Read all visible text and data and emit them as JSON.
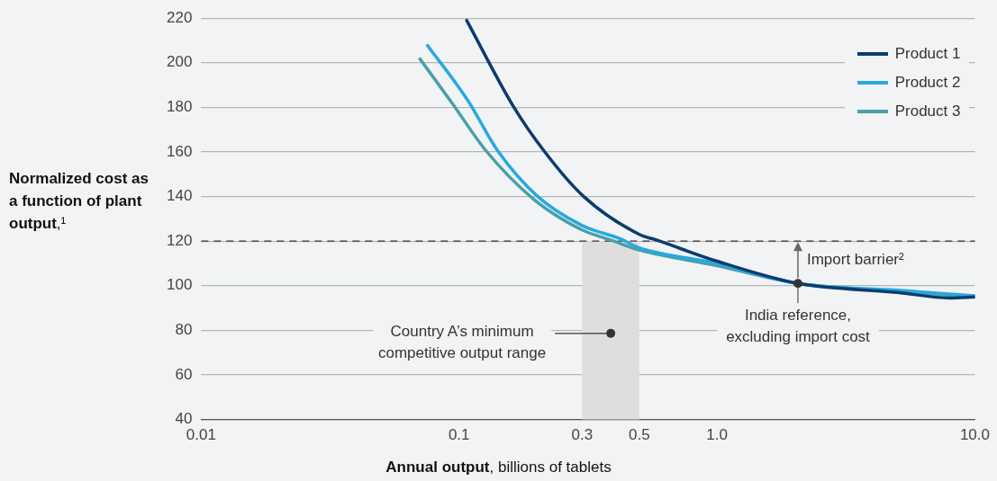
{
  "chart_data": {
    "type": "line",
    "xlabel": "Annual output, billions of tablets",
    "ylabel": "Normalized cost as a function of plant output,¹",
    "log": "x",
    "xlim": [
      0.01,
      10
    ],
    "xticks": [
      0.01,
      0.1,
      0.3,
      0.5,
      {
        "value": 1,
        "label": "1.0"
      },
      {
        "value": 10,
        "label": "10.0"
      }
    ],
    "ylim": [
      40,
      220
    ],
    "yticks": [
      40,
      60,
      80,
      100,
      120,
      140,
      160,
      180,
      200,
      220
    ],
    "grid": "y",
    "legend": "top right",
    "marker": "none",
    "line_style": "solid",
    "series": [
      {
        "name": "Product 1",
        "color": "#0b3c6e",
        "x": [
          0.107,
          0.162,
          0.213,
          0.303,
          0.5,
          0.582,
          1,
          2.06,
          5,
          8,
          10
        ],
        "values": [
          219,
          180.6,
          160.6,
          140.2,
          123,
          120.5,
          111,
          101,
          97,
          94.5,
          95
        ]
      },
      {
        "name": "Product 2",
        "color": "#27a9e1",
        "x": [
          0.0755,
          0.108,
          0.141,
          0.201,
          0.3,
          0.42,
          0.5,
          1,
          2.06,
          5,
          10
        ],
        "values": [
          207.7,
          183.2,
          160.6,
          140.2,
          127,
          121.1,
          117,
          110,
          101,
          98,
          95.5
        ]
      },
      {
        "name": "Product 3",
        "color": "#4a9fa8",
        "x": [
          0.0705,
          0.094,
          0.127,
          0.196,
          0.3,
          0.387,
          0.5,
          1,
          2.06,
          5,
          10
        ],
        "values": [
          201.7,
          181.9,
          160.6,
          138.5,
          125,
          120.5,
          116,
          109,
          101,
          97.5,
          95
        ]
      }
    ],
    "ref_lines": [
      {
        "axis": "y",
        "value": 120,
        "color": "#333333",
        "line_style": "dashed"
      }
    ],
    "bands": [
      {
        "axis": "x",
        "from": 0.3,
        "to": 0.5,
        "color": "#dedede"
      }
    ],
    "annotations": [
      "Country A’s minimum competitive output range",
      {
        "text": "India reference, excluding import cost",
        "x": 2.06,
        "y": 101
      },
      "Import barrier²"
    ]
  }
}
